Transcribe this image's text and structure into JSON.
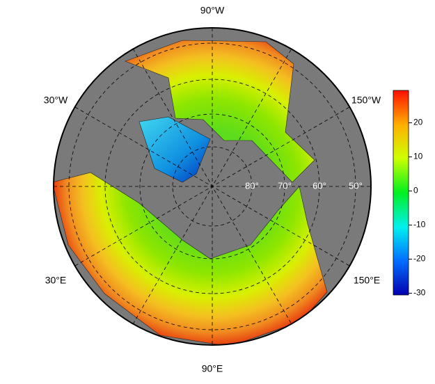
{
  "map": {
    "longitude_labels": [
      "90°W",
      "150°W",
      "150°E",
      "90°E",
      "30°E",
      "30°W"
    ],
    "latitude_labels": [
      "80°",
      "70°",
      "60°",
      "50°"
    ],
    "colorbar": {
      "lim": [
        -30.5,
        29.5
      ],
      "ticks": [
        -30,
        -20,
        -10,
        0,
        10,
        20
      ]
    }
  }
}
